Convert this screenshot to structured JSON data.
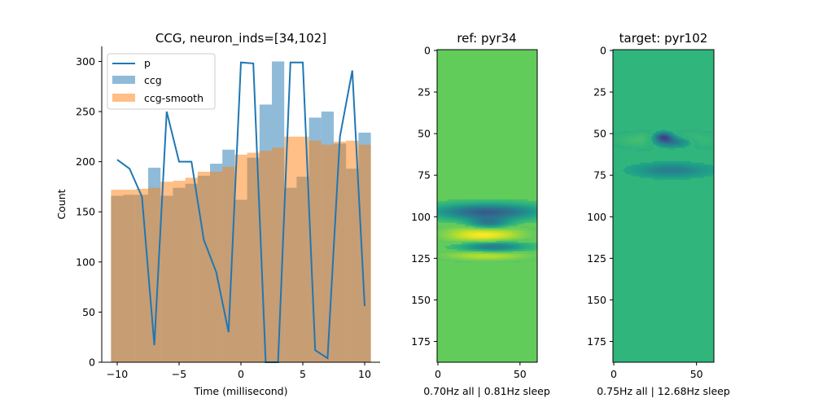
{
  "chart_data": [
    {
      "type": "bar",
      "title": "CCG, neuron_inds=[34,102]",
      "xlabel": "Time (millisecond)",
      "ylabel": "Count",
      "xlim": [
        -11.25,
        11.25
      ],
      "ylim": [
        0,
        315
      ],
      "xticks": [
        -10,
        -5,
        0,
        5,
        10
      ],
      "yticks": [
        0,
        50,
        100,
        150,
        200,
        250,
        300
      ],
      "legend_position": "upper-left",
      "colors": {
        "ccg": "#1f77b4",
        "smooth": "#ff7f0e",
        "line": "#1f77b4"
      },
      "x": [
        -10,
        -9,
        -8,
        -7,
        -6,
        -5,
        -4,
        -3,
        -2,
        -1,
        0,
        1,
        2,
        3,
        4,
        5,
        6,
        7,
        8,
        9,
        10
      ],
      "series": [
        {
          "name": "p",
          "kind": "line",
          "values": [
            202,
            193,
            165,
            17,
            250,
            200,
            200,
            122,
            90,
            30,
            299,
            298,
            0,
            0,
            299,
            299,
            12,
            4,
            225,
            291,
            56
          ]
        },
        {
          "name": "ccg",
          "kind": "bar",
          "opacity": 0.5,
          "values": [
            166,
            167,
            167,
            194,
            166,
            174,
            178,
            186,
            198,
            212,
            162,
            204,
            257,
            300,
            174,
            185,
            244,
            250,
            218,
            193,
            229
          ]
        },
        {
          "name": "ccg-smooth",
          "kind": "bar",
          "opacity": 0.5,
          "values": [
            172,
            172,
            173,
            174,
            180,
            181,
            184,
            190,
            190,
            195,
            207,
            209,
            211,
            214,
            225,
            225,
            221,
            217,
            220,
            221,
            217
          ]
        }
      ]
    },
    {
      "type": "heatmap",
      "title": "ref: pyr34",
      "xlabel": "0.70Hz all | 0.81Hz sleep",
      "xticks": [
        0,
        50
      ],
      "yticks": [
        0,
        25,
        50,
        75,
        100,
        125,
        150,
        175
      ],
      "xlim": [
        0,
        61
      ],
      "ylim": [
        188,
        0
      ],
      "background": "#62cc5a",
      "features": [
        {
          "x": 30,
          "y": 97,
          "sx": 22,
          "sy": 3.2,
          "amp": -1.0
        },
        {
          "x": 31,
          "y": 104,
          "sx": 9,
          "sy": 2.5,
          "amp": -0.8
        },
        {
          "x": 28,
          "y": 111,
          "sx": 16,
          "sy": 4.0,
          "amp": 0.7
        },
        {
          "x": 33,
          "y": 118,
          "sx": 14,
          "sy": 2.5,
          "amp": -0.9
        },
        {
          "x": 30,
          "y": 123,
          "sx": 18,
          "sy": 2.2,
          "amp": 0.5
        }
      ]
    },
    {
      "type": "heatmap",
      "title": "target: pyr102",
      "xlabel": "0.75Hz all | 12.68Hz sleep",
      "xticks": [
        0,
        50
      ],
      "yticks": [
        0,
        25,
        50,
        75,
        100,
        125,
        150,
        175
      ],
      "xlim": [
        0,
        61
      ],
      "ylim": [
        188,
        0
      ],
      "background": "#30b67c",
      "features": [
        {
          "x": 30,
          "y": 52,
          "sx": 4,
          "sy": 2.0,
          "amp": -1.0
        },
        {
          "x": 35,
          "y": 55,
          "sx": 8,
          "sy": 2.3,
          "amp": -0.8
        },
        {
          "x": 32,
          "y": 54,
          "sx": 20,
          "sy": 3.5,
          "amp": 0.35
        },
        {
          "x": 35,
          "y": 72,
          "sx": 14,
          "sy": 2.6,
          "amp": -0.45
        }
      ]
    }
  ]
}
